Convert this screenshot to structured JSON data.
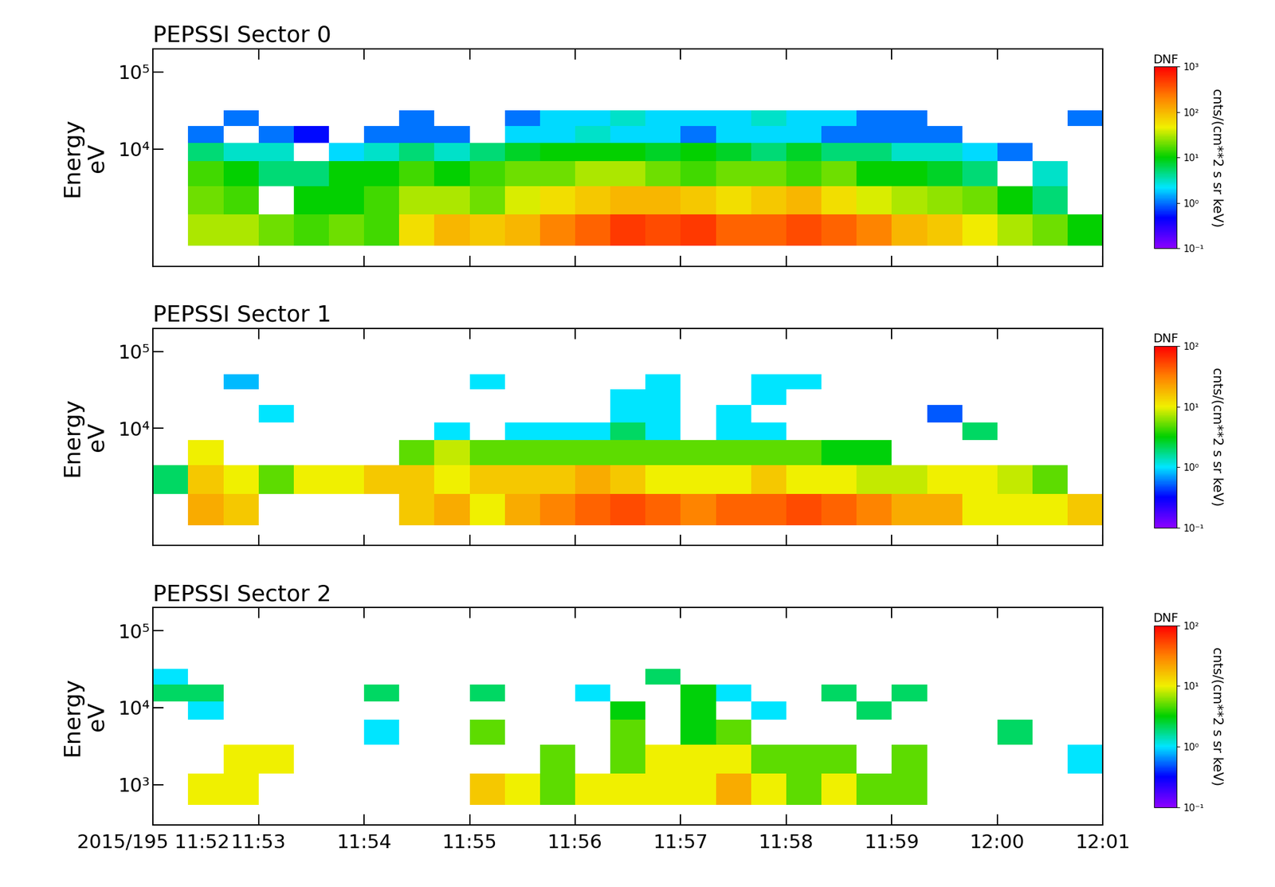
{
  "chart_data": [
    {
      "type": "heatmap",
      "title": "PEPSSI Sector 0",
      "y_label": "Energy\neV",
      "log": "y",
      "tick_labels": "y",
      "x": [
        42720,
        42740,
        42760,
        42780,
        42800,
        42820,
        42840,
        42860,
        42880,
        42900,
        42920,
        42940,
        42960,
        42980,
        43000,
        43020,
        43040,
        43060,
        43080,
        43100,
        43120,
        43140,
        43160,
        43180,
        43200,
        43220,
        43240,
        43260
      ],
      "y": [
        550,
        1400,
        3300,
        7000,
        12000,
        20000,
        32000,
        50000
      ],
      "xlim": [
        42720,
        43260
      ],
      "xticks": [
        42720,
        42780,
        42840,
        42900,
        42960,
        43020,
        43080,
        43140,
        43200,
        43260
      ],
      "ylim": [
        300,
        200000
      ],
      "yticks": [
        {
          "value": 10000,
          "label": "10⁴"
        },
        {
          "value": 100000,
          "label": "10⁵"
        }
      ],
      "cells": [
        [
          null,
          30,
          30,
          20,
          15,
          20,
          15,
          60,
          100,
          80,
          100,
          200,
          300,
          500,
          400,
          500,
          300,
          300,
          400,
          300,
          200,
          100,
          80,
          50,
          30,
          20,
          10
        ],
        [
          null,
          20,
          15,
          null,
          10,
          10,
          15,
          30,
          30,
          20,
          40,
          60,
          80,
          100,
          100,
          80,
          60,
          80,
          100,
          60,
          40,
          30,
          25,
          20,
          10,
          5,
          null
        ],
        [
          null,
          15,
          10,
          5,
          5,
          10,
          10,
          15,
          10,
          15,
          20,
          20,
          30,
          30,
          20,
          15,
          20,
          20,
          15,
          20,
          10,
          10,
          8,
          5,
          null,
          3,
          null
        ],
        [
          null,
          5,
          3,
          3,
          null,
          2,
          3,
          5,
          3,
          5,
          8,
          10,
          10,
          10,
          8,
          10,
          8,
          5,
          8,
          5,
          5,
          3,
          3,
          2,
          1,
          null,
          null
        ],
        [
          null,
          1,
          null,
          1,
          0.5,
          null,
          1,
          1,
          1,
          null,
          2,
          2,
          3,
          2,
          2,
          1,
          2,
          2,
          2,
          1,
          1,
          1,
          1,
          null,
          null,
          null,
          null
        ],
        [
          null,
          null,
          1,
          null,
          null,
          null,
          null,
          1,
          null,
          null,
          1,
          2,
          2,
          3,
          2,
          2,
          2,
          3,
          2,
          2,
          1,
          1,
          null,
          null,
          null,
          null,
          1
        ],
        [
          null,
          null,
          null,
          null,
          null,
          null,
          null,
          null,
          null,
          null,
          null,
          null,
          null,
          null,
          null,
          null,
          null,
          null,
          null,
          null,
          null,
          null,
          null,
          null,
          null,
          null,
          null
        ]
      ],
      "colorbar": {
        "title": "DNF",
        "label": "cnts/(cm**2 s sr keV)",
        "range": [
          0.1,
          1000
        ],
        "ticks": [
          {
            "value": 0.1,
            "label": "10⁻¹"
          },
          {
            "value": 1,
            "label": "10⁰"
          },
          {
            "value": 10,
            "label": "10¹"
          },
          {
            "value": 100,
            "label": "10²"
          },
          {
            "value": 1000,
            "label": "10³"
          }
        ]
      }
    },
    {
      "type": "heatmap",
      "title": "PEPSSI Sector 1",
      "y_label": "Energy\neV",
      "log": "y",
      "tick_labels": "y",
      "x": [
        42720,
        42740,
        42760,
        42780,
        42800,
        42820,
        42840,
        42860,
        42880,
        42900,
        42920,
        42940,
        42960,
        42980,
        43000,
        43020,
        43040,
        43060,
        43080,
        43100,
        43120,
        43140,
        43160,
        43180,
        43200,
        43220,
        43240,
        43260
      ],
      "y": [
        550,
        1400,
        3300,
        7000,
        12000,
        20000,
        32000,
        50000
      ],
      "xlim": [
        42720,
        43260
      ],
      "xticks": [
        42720,
        42780,
        42840,
        42900,
        42960,
        43020,
        43080,
        43140,
        43200,
        43260
      ],
      "ylim": [
        300,
        200000
      ],
      "yticks": [
        {
          "value": 10000,
          "label": "10⁴"
        },
        {
          "value": 100000,
          "label": "10⁵"
        }
      ],
      "cells": [
        [
          null,
          20,
          15,
          null,
          null,
          null,
          null,
          15,
          20,
          10,
          20,
          30,
          40,
          50,
          40,
          30,
          40,
          40,
          50,
          40,
          30,
          20,
          20,
          10,
          10,
          10,
          15
        ],
        [
          2,
          15,
          10,
          5,
          10,
          10,
          15,
          15,
          10,
          15,
          15,
          15,
          20,
          15,
          10,
          10,
          10,
          15,
          10,
          10,
          8,
          8,
          10,
          10,
          8,
          5,
          null
        ],
        [
          null,
          10,
          null,
          null,
          null,
          null,
          null,
          5,
          8,
          5,
          5,
          5,
          5,
          5,
          5,
          5,
          5,
          5,
          5,
          3,
          3,
          null,
          null,
          null,
          null,
          null,
          null
        ],
        [
          null,
          null,
          null,
          null,
          null,
          null,
          null,
          null,
          1,
          null,
          1,
          1,
          1,
          2,
          1,
          null,
          1,
          1,
          null,
          null,
          null,
          null,
          null,
          2,
          null,
          null,
          null
        ],
        [
          null,
          null,
          null,
          1,
          null,
          null,
          null,
          null,
          null,
          null,
          null,
          null,
          null,
          1,
          1,
          null,
          1,
          null,
          null,
          null,
          null,
          null,
          0.5,
          null,
          null,
          null,
          null
        ],
        [
          null,
          null,
          null,
          null,
          null,
          null,
          null,
          null,
          null,
          null,
          null,
          null,
          null,
          1,
          1,
          null,
          null,
          1,
          null,
          null,
          null,
          null,
          null,
          null,
          null,
          null,
          null
        ],
        [
          null,
          null,
          0.8,
          null,
          null,
          null,
          null,
          null,
          null,
          1,
          null,
          null,
          null,
          null,
          1,
          null,
          null,
          1,
          1,
          null,
          null,
          null,
          null,
          null,
          null,
          null,
          null
        ]
      ],
      "colorbar": {
        "title": "DNF",
        "label": "cnts/(cm**2 s sr keV)",
        "range": [
          0.1,
          100
        ],
        "ticks": [
          {
            "value": 0.1,
            "label": "10⁻¹"
          },
          {
            "value": 1,
            "label": "10⁰"
          },
          {
            "value": 10,
            "label": "10¹"
          },
          {
            "value": 100,
            "label": "10²"
          }
        ]
      }
    },
    {
      "type": "heatmap",
      "title": "PEPSSI Sector 2",
      "y_label": "Energy\neV",
      "log": "y",
      "x": [
        42720,
        42740,
        42760,
        42780,
        42800,
        42820,
        42840,
        42860,
        42880,
        42900,
        42920,
        42940,
        42960,
        42980,
        43000,
        43020,
        43040,
        43060,
        43080,
        43100,
        43120,
        43140,
        43160,
        43180,
        43200,
        43220,
        43240,
        43260
      ],
      "y": [
        550,
        1400,
        3300,
        7000,
        12000,
        20000,
        32000,
        50000
      ],
      "xlim": [
        42720,
        43260
      ],
      "xticks": [
        {
          "value": 42720,
          "label": "2015/195 11:52"
        },
        {
          "value": 42780,
          "label": "11:53"
        },
        {
          "value": 42840,
          "label": "11:54"
        },
        {
          "value": 42900,
          "label": "11:55"
        },
        {
          "value": 42960,
          "label": "11:56"
        },
        {
          "value": 43020,
          "label": "11:57"
        },
        {
          "value": 43080,
          "label": "11:58"
        },
        {
          "value": 43140,
          "label": "11:59"
        },
        {
          "value": 43200,
          "label": "12:00"
        },
        {
          "value": 43260,
          "label": "12:01"
        }
      ],
      "ylim": [
        300,
        200000
      ],
      "yticks": [
        {
          "value": 1000,
          "label": "10³"
        },
        {
          "value": 10000,
          "label": "10⁴"
        },
        {
          "value": 100000,
          "label": "10⁵"
        }
      ],
      "cells": [
        [
          null,
          10,
          10,
          null,
          null,
          null,
          null,
          null,
          null,
          15,
          10,
          5,
          10,
          10,
          10,
          10,
          20,
          10,
          5,
          10,
          5,
          5,
          null,
          null,
          null,
          null,
          null
        ],
        [
          null,
          null,
          10,
          10,
          null,
          null,
          null,
          null,
          null,
          null,
          null,
          5,
          null,
          5,
          10,
          10,
          10,
          5,
          5,
          5,
          null,
          5,
          null,
          null,
          null,
          null,
          1
        ],
        [
          null,
          null,
          null,
          null,
          null,
          null,
          1,
          null,
          null,
          5,
          null,
          null,
          null,
          5,
          null,
          3,
          5,
          null,
          null,
          null,
          null,
          null,
          null,
          null,
          2,
          null,
          null
        ],
        [
          null,
          1,
          null,
          null,
          null,
          null,
          null,
          null,
          null,
          null,
          null,
          null,
          null,
          3,
          null,
          3,
          null,
          1,
          null,
          null,
          2,
          null,
          null,
          null,
          null,
          null,
          null
        ],
        [
          2,
          2,
          null,
          null,
          null,
          null,
          2,
          null,
          null,
          2,
          null,
          null,
          1,
          null,
          null,
          3,
          1,
          null,
          null,
          2,
          null,
          2,
          null,
          null,
          null,
          null,
          null
        ],
        [
          1,
          null,
          null,
          null,
          null,
          null,
          null,
          null,
          null,
          null,
          null,
          null,
          null,
          null,
          2,
          null,
          null,
          null,
          null,
          null,
          null,
          null,
          null,
          null,
          null,
          null,
          null
        ],
        [
          null,
          null,
          null,
          null,
          null,
          null,
          null,
          null,
          null,
          null,
          null,
          null,
          null,
          null,
          null,
          null,
          null,
          null,
          null,
          null,
          null,
          null,
          null,
          null,
          null,
          null,
          null
        ]
      ],
      "colorbar": {
        "title": "DNF",
        "label": "cnts/(cm**2 s sr keV)",
        "range": [
          0.1,
          100
        ],
        "ticks": [
          {
            "value": 0.1,
            "label": "10⁻¹"
          },
          {
            "value": 1,
            "label": "10⁰"
          },
          {
            "value": 10,
            "label": "10¹"
          },
          {
            "value": 100,
            "label": "10²"
          }
        ]
      }
    }
  ]
}
